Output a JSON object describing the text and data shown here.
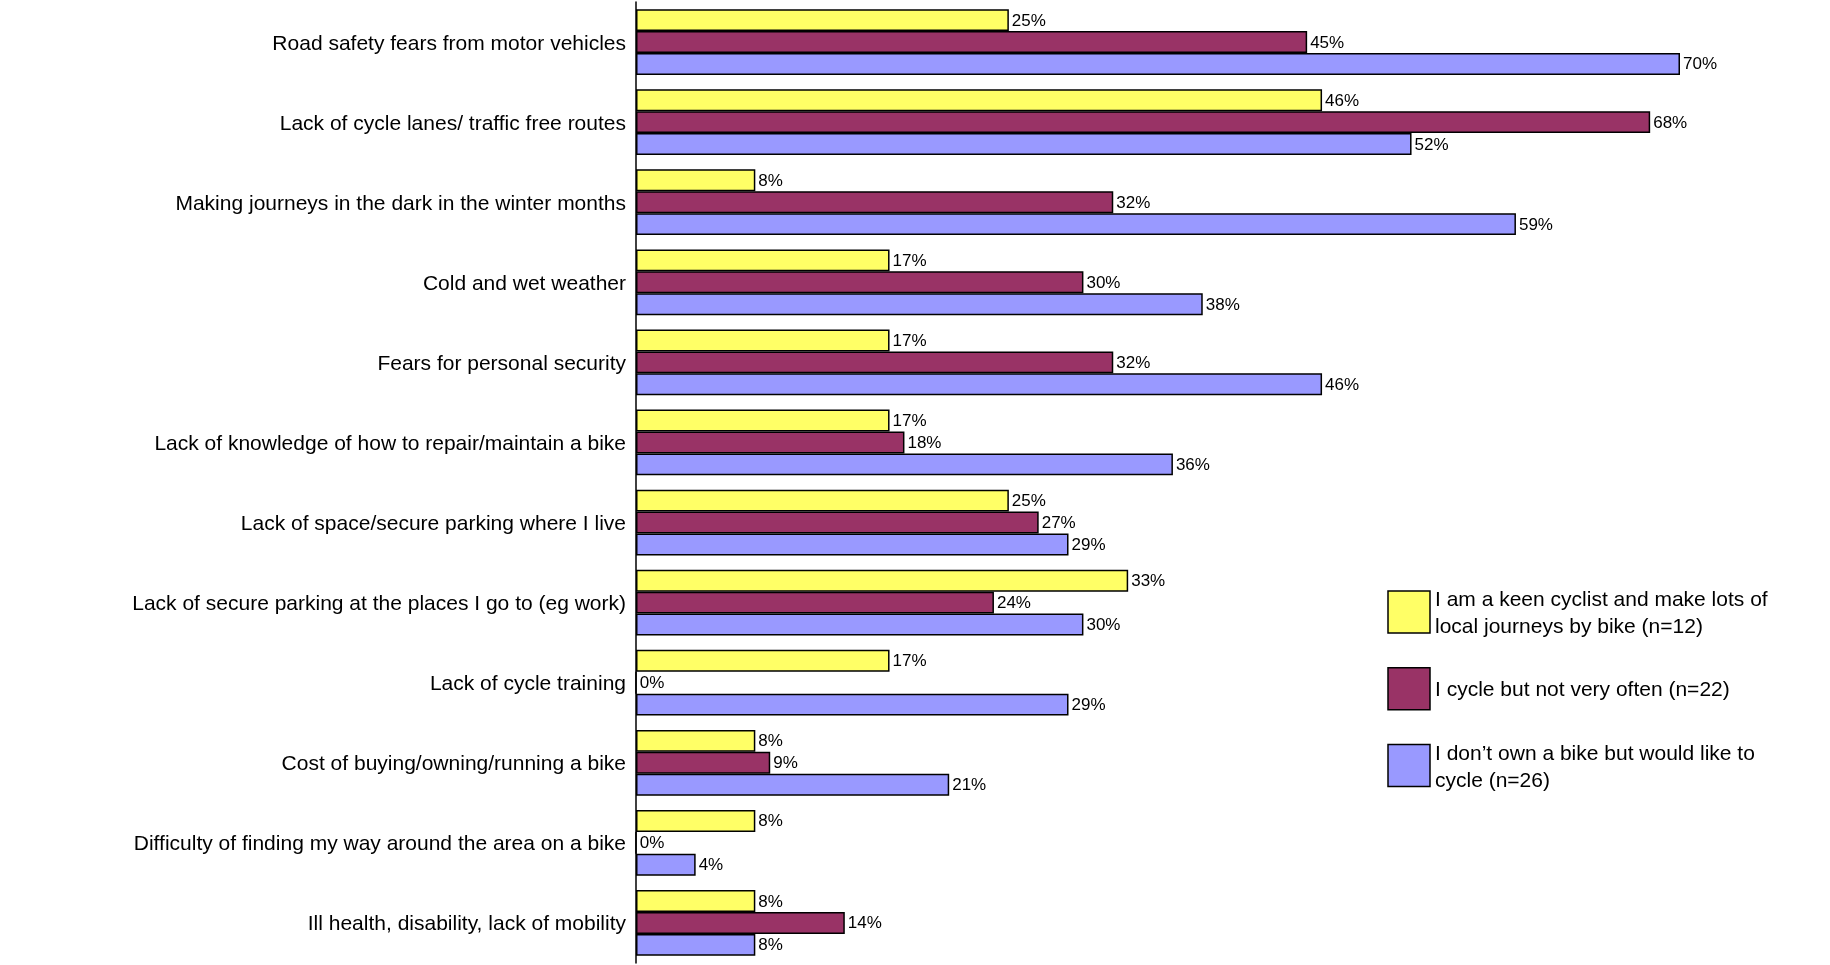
{
  "chart_data": {
    "type": "bar",
    "orientation": "horizontal",
    "categories": [
      "Road safety fears from motor vehicles",
      "Lack of cycle lanes/ traffic free routes",
      "Making journeys in the dark in the winter months",
      "Cold and wet weather",
      "Fears for personal security",
      "Lack of knowledge of how to repair/maintain a bike",
      "Lack of space/secure parking where I live",
      "Lack of secure parking at the places I go to (eg work)",
      "Lack of cycle training",
      "Cost of buying/owning/running a bike",
      "Difficulty of finding my way around the area on a bike",
      "Ill health, disability, lack of mobility"
    ],
    "series": [
      {
        "name": "I am a keen cyclist and make lots of local journeys by bike (n=12)",
        "color": "#ffff66",
        "values": [
          25,
          46,
          8,
          17,
          17,
          17,
          25,
          33,
          17,
          8,
          8,
          8
        ],
        "value_labels": [
          "25%",
          "46%",
          "8%",
          "17%",
          "17%",
          "17%",
          "25%",
          "33%",
          "17%",
          "8%",
          "8%",
          "8%"
        ]
      },
      {
        "name": "I cycle but not very often (n=22)",
        "color": "#993366",
        "values": [
          45,
          68,
          32,
          30,
          32,
          18,
          27,
          24,
          0,
          9,
          0,
          14
        ],
        "value_labels": [
          "45%",
          "68%",
          "32%",
          "30%",
          "32%",
          "18%",
          "27%",
          "24%",
          "0%",
          "9%",
          "0%",
          "14%"
        ]
      },
      {
        "name": "I don’t own a bike but would like to cycle (n=26)",
        "color": "#9999ff",
        "values": [
          70,
          52,
          59,
          38,
          46,
          36,
          29,
          30,
          29,
          21,
          4,
          8
        ],
        "value_labels": [
          "70%",
          "52%",
          "59%",
          "38%",
          "46%",
          "36%",
          "29%",
          "30%",
          "29%",
          "21%",
          "4%",
          "8%"
        ]
      }
    ],
    "legend": "right",
    "grid": false,
    "tick_labels": "y"
  }
}
